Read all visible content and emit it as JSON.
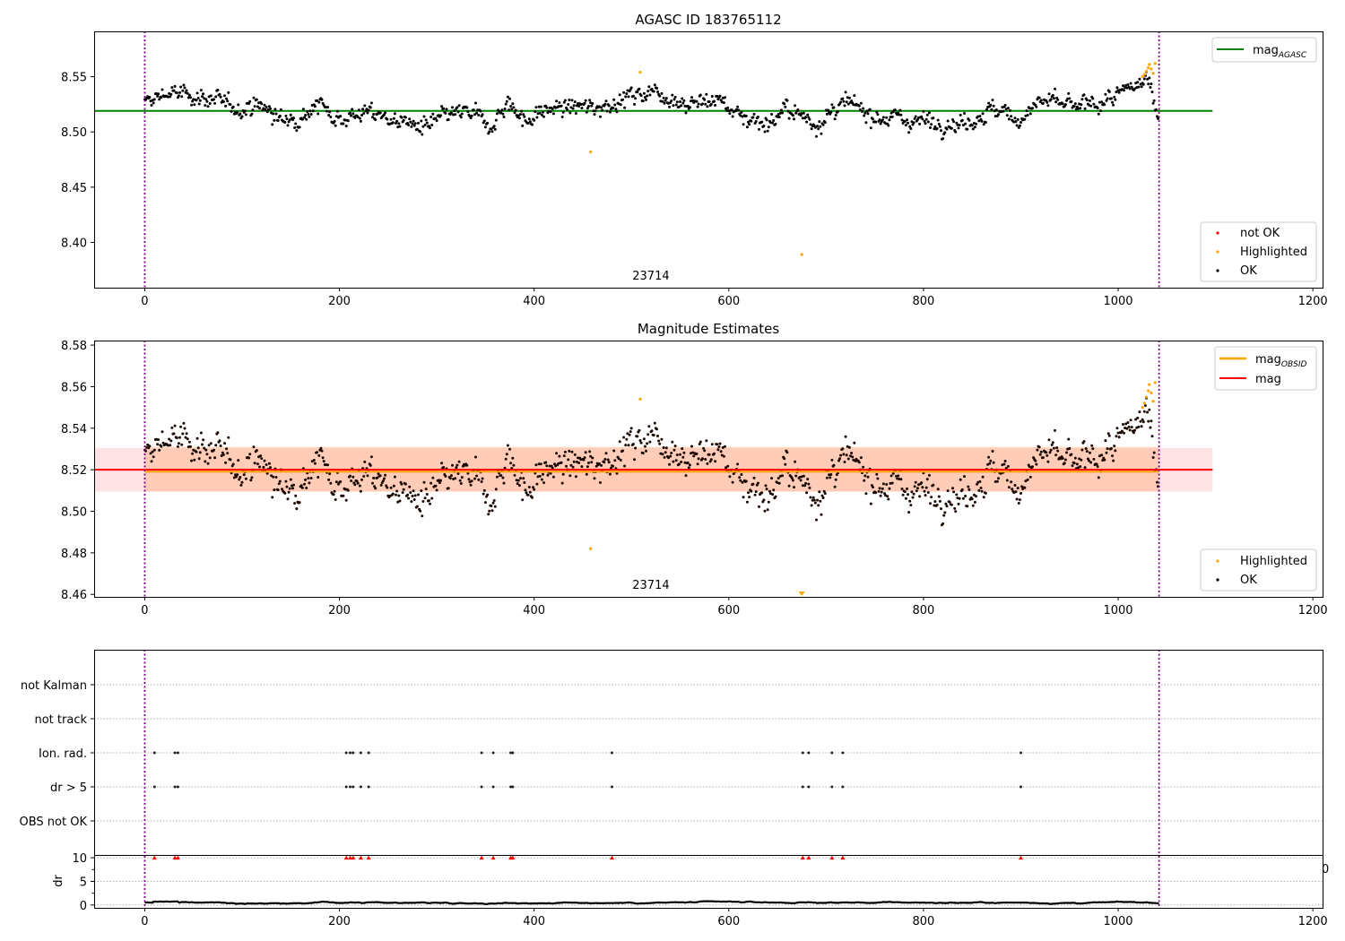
{
  "chart_data": [
    {
      "type": "scatter",
      "title": "AGASC ID 183765112",
      "xlabel": "",
      "ylabel": "",
      "xlim": [
        -52,
        1210
      ],
      "ylim": [
        8.359,
        8.591
      ],
      "x_ticks": [
        "0",
        "200",
        "400",
        "600",
        "800",
        "1000",
        "1200"
      ],
      "x_tick_values": [
        0,
        200,
        400,
        600,
        800,
        1000,
        1200
      ],
      "y_ticks": [
        "8.40",
        "8.45",
        "8.50",
        "8.55"
      ],
      "y_tick_values": [
        8.4,
        8.45,
        8.5,
        8.55
      ],
      "annotation": "23714",
      "annotation_x": 520,
      "vline_x": [
        0,
        1042
      ],
      "hline": {
        "name": "mag_AGASC",
        "label": "mag",
        "subscript": "AGASC",
        "value": 8.519,
        "x_range": [
          -52,
          1097
        ],
        "color": "#008000"
      },
      "legend_upper": {
        "position": "top-right",
        "entries": [
          {
            "label": "mag",
            "subscript": "AGASC",
            "color": "#008000",
            "kind": "line"
          }
        ]
      },
      "legend_lower": {
        "position": "bottom-right",
        "entries": [
          {
            "label": "not OK",
            "color": "#ff0000",
            "kind": "dot"
          },
          {
            "label": "Highlighted",
            "color": "#ffa500",
            "kind": "dot"
          },
          {
            "label": "OK",
            "color": "#000000",
            "kind": "dot"
          }
        ]
      },
      "series": [
        {
          "name": "OK",
          "color": "#000000",
          "n_points": 1042,
          "trend": [
            [
              0,
              8.525
            ],
            [
              20,
              8.535
            ],
            [
              60,
              8.532
            ],
            [
              90,
              8.522
            ],
            [
              120,
              8.524
            ],
            [
              140,
              8.51
            ],
            [
              160,
              8.515
            ],
            [
              180,
              8.525
            ],
            [
              200,
              8.512
            ],
            [
              230,
              8.518
            ],
            [
              260,
              8.51
            ],
            [
              290,
              8.503
            ],
            [
              310,
              8.515
            ],
            [
              340,
              8.517
            ],
            [
              350,
              8.503
            ],
            [
              375,
              8.527
            ],
            [
              390,
              8.51
            ],
            [
              420,
              8.522
            ],
            [
              460,
              8.522
            ],
            [
              500,
              8.532
            ],
            [
              520,
              8.538
            ],
            [
              560,
              8.525
            ],
            [
              590,
              8.53
            ],
            [
              610,
              8.515
            ],
            [
              640,
              8.508
            ],
            [
              660,
              8.52
            ],
            [
              690,
              8.508
            ],
            [
              720,
              8.525
            ],
            [
              760,
              8.513
            ],
            [
              800,
              8.51
            ],
            [
              840,
              8.508
            ],
            [
              870,
              8.52
            ],
            [
              900,
              8.512
            ],
            [
              920,
              8.528
            ],
            [
              960,
              8.522
            ],
            [
              1000,
              8.532
            ],
            [
              1030,
              8.548
            ],
            [
              1040,
              8.522
            ]
          ],
          "noise": 0.006
        },
        {
          "name": "Highlighted",
          "color": "#ffa500",
          "points": [
            [
              509,
              8.554
            ],
            [
              458,
              8.482
            ],
            [
              675,
              8.389
            ],
            [
              1025,
              8.55
            ],
            [
              1027,
              8.552
            ],
            [
              1029,
              8.555
            ],
            [
              1031,
              8.558
            ],
            [
              1032,
              8.561
            ],
            [
              1034,
              8.557
            ],
            [
              1036,
              8.553
            ],
            [
              1038,
              8.562
            ]
          ]
        },
        {
          "name": "not OK",
          "color": "#ff0000",
          "points": []
        }
      ]
    },
    {
      "type": "scatter",
      "title": "Magnitude Estimates",
      "xlabel": "",
      "ylabel": "",
      "xlim": [
        -52,
        1210
      ],
      "ylim": [
        8.4588,
        8.5822
      ],
      "x_ticks": [
        "0",
        "200",
        "400",
        "600",
        "800",
        "1000",
        "1200"
      ],
      "x_tick_values": [
        0,
        200,
        400,
        600,
        800,
        1000,
        1200
      ],
      "y_ticks": [
        "8.46",
        "8.48",
        "8.50",
        "8.52",
        "8.54",
        "8.56",
        "8.58"
      ],
      "y_tick_values": [
        8.46,
        8.48,
        8.5,
        8.52,
        8.54,
        8.56,
        8.58
      ],
      "annotation": "23714",
      "annotation_x": 520,
      "vline_x": [
        0,
        1042
      ],
      "hline_mag": {
        "label": "mag",
        "value": 8.52,
        "x_range": [
          -52,
          1097
        ],
        "color": "#ff0000"
      },
      "hline_obsid": {
        "label": "mag",
        "subscript": "OBSID",
        "value": 8.5195,
        "x_range": [
          0,
          1042
        ],
        "color": "#ffa500"
      },
      "band_mag": {
        "low": 8.5095,
        "high": 8.5305,
        "x_range": [
          -52,
          1097
        ],
        "color": "#ffc0c8"
      },
      "band_obsid": {
        "low": 8.5095,
        "high": 8.531,
        "x_range": [
          0,
          1042
        ],
        "color": "#ffa060"
      },
      "legend_upper": {
        "position": "top-right",
        "entries": [
          {
            "label": "mag",
            "subscript": "OBSID",
            "color": "#ffa500",
            "kind": "line"
          },
          {
            "label": "mag",
            "color": "#ff0000",
            "kind": "line"
          }
        ]
      },
      "legend_lower": {
        "position": "bottom-right",
        "entries": [
          {
            "label": "Highlighted",
            "color": "#ffa500",
            "kind": "dot"
          },
          {
            "label": "OK",
            "color": "#000000",
            "kind": "dot"
          }
        ]
      },
      "series": [
        {
          "name": "OK",
          "same_as": "AGASC plot OK series"
        },
        {
          "name": "Highlighted",
          "color": "#ffa500",
          "points": [
            [
              509,
              8.554
            ],
            [
              458,
              8.482
            ],
            [
              1025,
              8.55
            ],
            [
              1027,
              8.552
            ],
            [
              1029,
              8.555
            ],
            [
              1031,
              8.558
            ],
            [
              1032,
              8.561
            ],
            [
              1034,
              8.557
            ],
            [
              1036,
              8.553
            ],
            [
              1038,
              8.562
            ]
          ],
          "below_axis_markers": [
            [
              675,
              8.4588
            ]
          ]
        }
      ]
    },
    {
      "type": "scatter",
      "title": "",
      "xlim": [
        -52,
        1210
      ],
      "y_categories": [
        "OBS not OK",
        "dr > 5",
        "Ion. rad.",
        "not track",
        "not Kalman"
      ],
      "flag_indices": {
        "OBS not OK": [],
        "dr > 5": [
          10,
          31,
          34,
          207,
          211,
          214,
          222,
          230,
          346,
          358,
          376,
          378,
          480,
          676,
          682,
          706,
          717,
          900
        ],
        "Ion. rad.": [
          10,
          31,
          34,
          207,
          211,
          214,
          222,
          230,
          346,
          358,
          376,
          378,
          480,
          676,
          682,
          706,
          717,
          900
        ],
        "not track": [],
        "not Kalman": []
      },
      "vline_x": [
        0,
        1042
      ]
    },
    {
      "type": "line",
      "title": "",
      "ylabel": "dr",
      "xlim": [
        -52,
        1210
      ],
      "ylim": [
        -0.6,
        10.4
      ],
      "x_ticks": [
        "0",
        "200",
        "400",
        "600",
        "800",
        "1000",
        "1200"
      ],
      "x_tick_values": [
        0,
        200,
        400,
        600,
        800,
        1000,
        1200
      ],
      "y_ticks": [
        "0",
        "5",
        "10"
      ],
      "y_tick_values": [
        0,
        5,
        10
      ],
      "clipped_marker_value": 10,
      "clipped_marker_color": "#ff0000",
      "stray_tick_label": "0",
      "baseline_level": 0.5,
      "vline_x": [
        0,
        1042
      ]
    }
  ]
}
